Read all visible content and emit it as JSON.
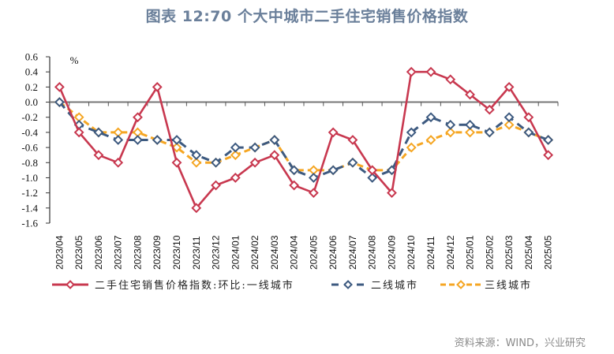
{
  "title": "图表 12:70 个大中城市二手住宅销售价格指数",
  "source": "资料来源：WIND，兴业研究",
  "chart_data": {
    "type": "line",
    "title": "图表 12:70 个大中城市二手住宅销售价格指数",
    "ylabel": "%",
    "xlabel": "",
    "ylim": [
      -1.6,
      0.6
    ],
    "yticks": [
      "0.6",
      "0.4",
      "0.2",
      "0.0",
      "-0.2",
      "-0.4",
      "-0.6",
      "-0.8",
      "-1.0",
      "-1.2",
      "-1.4",
      "-1.6"
    ],
    "ytick_values": [
      0.6,
      0.4,
      0.2,
      0.0,
      -0.2,
      -0.4,
      -0.6,
      -0.8,
      -1.0,
      -1.2,
      -1.4,
      -1.6
    ],
    "grid": false,
    "legend_position": "bottom",
    "categories": [
      "2023/04",
      "2023/05",
      "2023/06",
      "2023/07",
      "2023/08",
      "2023/09",
      "2023/10",
      "2023/11",
      "2023/12",
      "2024/01",
      "2024/02",
      "2024/03",
      "2024/04",
      "2024/05",
      "2024/06",
      "2024/07",
      "2024/08",
      "2024/09",
      "2024/10",
      "2024/11",
      "2024/12",
      "2025/01",
      "2025/02",
      "2025/03",
      "2025/04",
      "2025/05"
    ],
    "series": [
      {
        "name": "二手住宅销售价格指数:环比:一线城市",
        "color": "#c8384f",
        "style": "solid",
        "values": [
          0.2,
          -0.4,
          -0.7,
          -0.8,
          -0.2,
          0.2,
          -0.8,
          -1.4,
          -1.1,
          -1.0,
          -0.8,
          -0.7,
          -1.1,
          -1.2,
          -0.4,
          -0.5,
          -0.9,
          -1.2,
          0.4,
          0.4,
          0.3,
          0.1,
          -0.1,
          0.2,
          -0.2,
          -0.7
        ]
      },
      {
        "name": "二线城市",
        "color": "#3d5a80",
        "style": "dashed",
        "values": [
          0.0,
          -0.3,
          -0.4,
          -0.5,
          -0.5,
          -0.5,
          -0.5,
          -0.7,
          -0.8,
          -0.6,
          -0.6,
          -0.5,
          -0.9,
          -1.0,
          -0.9,
          -0.8,
          -1.0,
          -0.9,
          -0.4,
          -0.2,
          -0.3,
          -0.3,
          -0.4,
          -0.2,
          -0.4,
          -0.5
        ]
      },
      {
        "name": "三线城市",
        "color": "#f5a623",
        "style": "dashed",
        "values": [
          0.0,
          -0.2,
          -0.4,
          -0.4,
          -0.4,
          -0.5,
          -0.6,
          -0.8,
          -0.8,
          -0.7,
          -0.6,
          -0.5,
          -0.9,
          -0.9,
          -0.9,
          -0.8,
          -0.9,
          -0.9,
          -0.6,
          -0.5,
          -0.4,
          -0.4,
          -0.4,
          -0.3,
          -0.4,
          -0.5
        ]
      }
    ]
  }
}
